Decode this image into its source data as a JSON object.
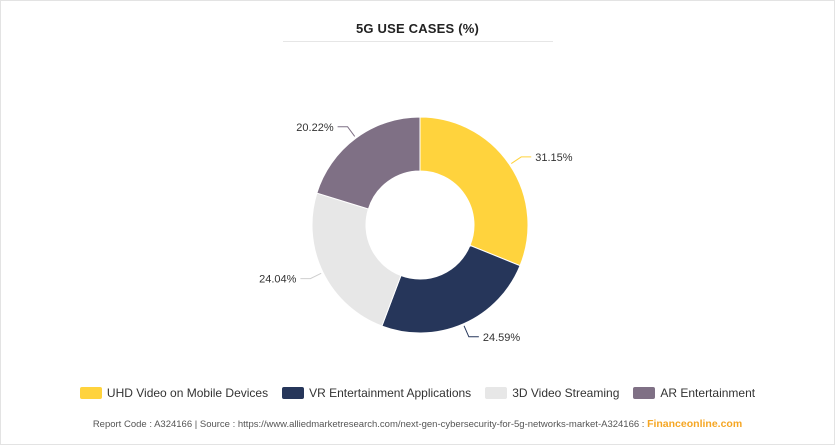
{
  "chart_data": {
    "type": "pie",
    "title": "5G USE CASES (%)",
    "series": [
      {
        "name": "UHD Video on Mobile Devices",
        "value": 31.15,
        "label": "31.15%",
        "color": "#ffd33d"
      },
      {
        "name": "VR Entertainment Applications",
        "value": 24.59,
        "label": "24.59%",
        "color": "#26365a"
      },
      {
        "name": "3D Video Streaming",
        "value": 24.04,
        "label": "24.04%",
        "color": "#e7e7e7"
      },
      {
        "name": "AR Entertainment",
        "value": 20.22,
        "label": "20.22%",
        "color": "#7f7085"
      }
    ],
    "legend_position": "bottom"
  },
  "footer": {
    "report_code": "Report Code : A324166",
    "separator": "|",
    "source": "Source : https://www.alliedmarketresearch.com/next-gen-cybersecurity-for-5g-networks-market-A324166 :",
    "brand": "Financeonline.com"
  }
}
